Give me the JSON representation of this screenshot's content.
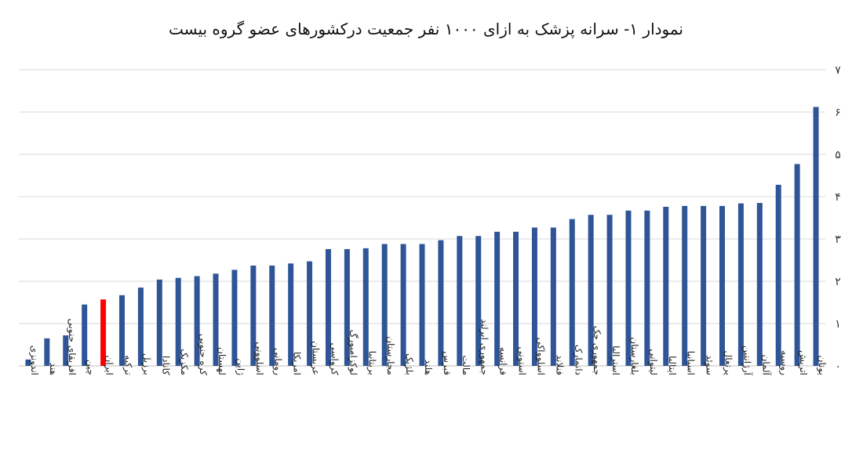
{
  "chart_data": {
    "type": "bar",
    "title": "نمودار ۱- سرانه پزشک به ازای ۱۰۰۰ نفر جمعیت درکشورهای عضو گروه بیست",
    "xlabel": "",
    "ylabel": "",
    "ylim": [
      0,
      7
    ],
    "yticks": [
      0,
      1,
      2,
      3,
      4,
      5,
      6,
      7
    ],
    "ytick_labels": [
      "۰",
      "۱",
      "۲",
      "۳",
      "۴",
      "۵",
      "۶",
      "۷"
    ],
    "grid": true,
    "legend": "none",
    "bar_color": "#2f5597",
    "highlight_color": "#ff0000",
    "highlight_category": "ایران",
    "categories": [
      "اندونزی",
      "هند",
      "افریقای جنوبی",
      "چین",
      "ایران",
      "ترکیه",
      "برزیل",
      "کانادا",
      "مکزیک",
      "کره جنوبی",
      "لهستان",
      "ژاپن",
      "اسلوونی",
      "رومانی",
      "امریکا",
      "عربستان",
      "کرواسی",
      "لوکزامبورگ",
      "بریتانیا",
      "مجارستان",
      "بلژیک",
      "هلند",
      "قبرس",
      "مالت",
      "جمهوری ایرلند",
      "فرانسه",
      "استونی",
      "اسلوواکی",
      "فنلاند",
      "دانمارک",
      "جمهوری چک",
      "استرالیا",
      "بلغارستان",
      "لیتوانی",
      "ایتالیا",
      "اسپانیا",
      "سوئد",
      "پرتغال",
      "آرژانتین",
      "آلمان",
      "روسیه",
      "اتریش",
      "یونان"
    ],
    "values": [
      0.15,
      0.65,
      0.72,
      1.45,
      1.57,
      1.67,
      1.85,
      2.04,
      2.08,
      2.12,
      2.18,
      2.27,
      2.37,
      2.37,
      2.42,
      2.47,
      2.76,
      2.76,
      2.78,
      2.88,
      2.88,
      2.88,
      2.97,
      3.07,
      3.07,
      3.17,
      3.17,
      3.27,
      3.27,
      3.47,
      3.57,
      3.57,
      3.67,
      3.67,
      3.76,
      3.78,
      3.78,
      3.78,
      3.84,
      3.85,
      4.28,
      4.77,
      6.12
    ]
  }
}
